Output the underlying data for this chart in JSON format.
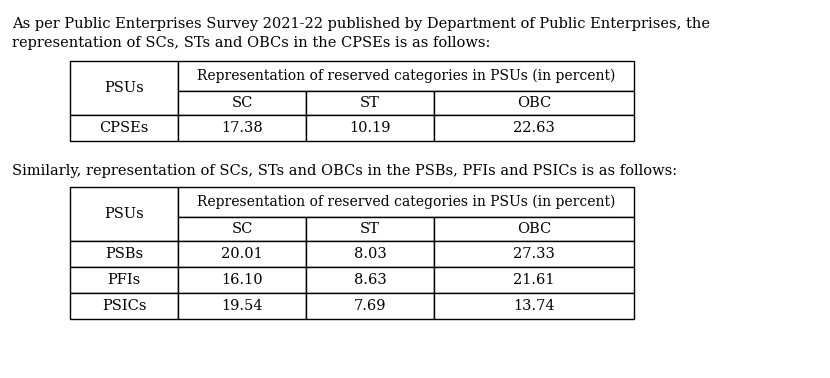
{
  "background_color": "#ffffff",
  "text1_line1": "As per Public Enterprises Survey 2021-22 published by Department of Public Enterprises, the",
  "text1_line2": "representation of SCs, STs and OBCs in the CPSEs is as follows:",
  "text2": "Similarly, representation of SCs, STs and OBCs in the PSBs, PFIs and PSICs is as follows:",
  "table1_header_col0": "PSUs",
  "table1_header_span": "Representation of reserved categories in PSUs (in percent)",
  "table1_subheaders": [
    "SC",
    "ST",
    "OBC"
  ],
  "table1_rows": [
    [
      "CPSEs",
      "17.38",
      "10.19",
      "22.63"
    ]
  ],
  "table2_header_col0": "PSUs",
  "table2_header_span": "Representation of reserved categories in PSUs (in percent)",
  "table2_subheaders": [
    "SC",
    "ST",
    "OBC"
  ],
  "table2_rows": [
    [
      "PSBs",
      "20.01",
      "8.03",
      "27.33"
    ],
    [
      "PFIs",
      "16.10",
      "8.63",
      "21.61"
    ],
    [
      "PSICs",
      "19.54",
      "7.69",
      "13.74"
    ]
  ],
  "font_size_text": 10.5,
  "font_size_table": 10.5,
  "font_size_header": 10.0,
  "font_family": "DejaVu Serif",
  "fig_w": 8.3,
  "fig_h": 3.78,
  "dpi": 100
}
